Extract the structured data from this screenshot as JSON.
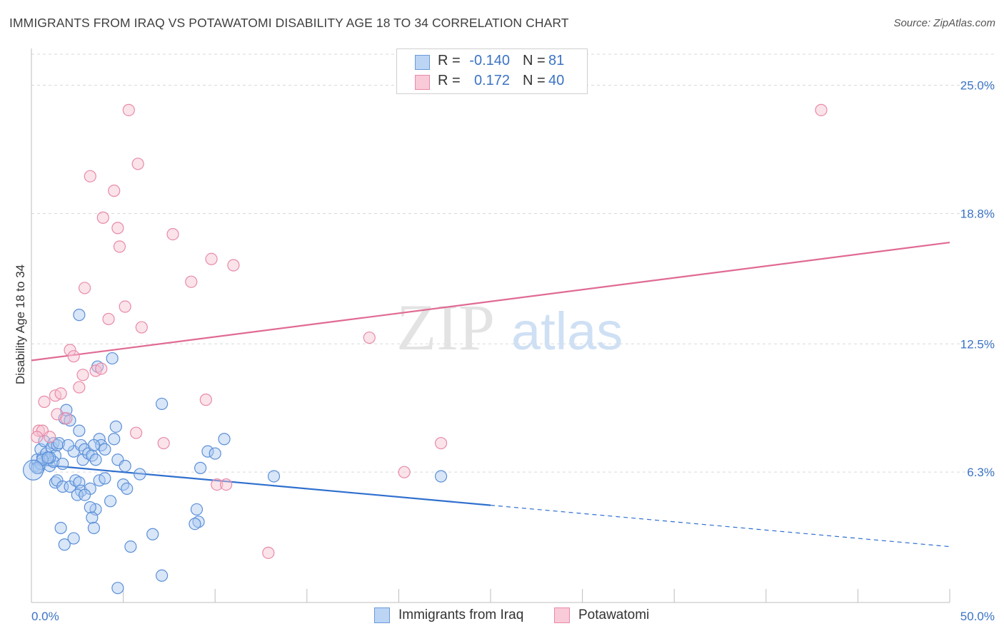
{
  "title": "IMMIGRANTS FROM IRAQ VS POTAWATOMI DISABILITY AGE 18 TO 34 CORRELATION CHART",
  "source": "Source: ZipAtlas.com",
  "watermark": {
    "zip": "ZIP",
    "atlas": "atlas"
  },
  "legend_top": [
    {
      "r_label": "R =",
      "r_value": "-0.140",
      "n_label": "N =",
      "n_value": "81"
    },
    {
      "r_label": "R =",
      "r_value": "0.172",
      "n_label": "N =",
      "n_value": "40"
    }
  ],
  "legend_bottom": [
    {
      "label": "Immigrants from Iraq"
    },
    {
      "label": "Potawatomi"
    }
  ],
  "colors": {
    "blue_fill": "#a8c8f0",
    "blue_stroke": "#5b8fd8",
    "blue_line": "#2f6fce",
    "pink_fill": "#f7c0d0",
    "pink_stroke": "#e88aa8",
    "pink_line": "#e06a94",
    "grid": "#d9d9d9",
    "axis_text": "#3b73c4"
  },
  "chart_data": {
    "type": "scatter",
    "title": "IMMIGRANTS FROM IRAQ VS POTAWATOMI DISABILITY AGE 18 TO 34 CORRELATION CHART",
    "xlabel": "",
    "ylabel": "Disability Age 18 to 34",
    "xlim": [
      0,
      50
    ],
    "ylim": [
      0,
      26.5
    ],
    "x_tick_labels": [
      "0.0%",
      "50.0%"
    ],
    "y_ticks": [
      6.3,
      12.5,
      18.8,
      25.0
    ],
    "y_tick_labels": [
      "6.3%",
      "12.5%",
      "18.8%",
      "25.0%"
    ],
    "grid": true,
    "legend_position": "top-center",
    "series": [
      {
        "name": "Immigrants from Iraq",
        "r": -0.14,
        "n": 81,
        "trend": {
          "x0": 0,
          "y0": 6.7,
          "x1": 25,
          "y1": 4.7,
          "dash_x1": 50,
          "dash_y1": 2.7
        },
        "points": [
          [
            0.2,
            6.6
          ],
          [
            0.3,
            6.9
          ],
          [
            0.4,
            6.5
          ],
          [
            0.5,
            6.7
          ],
          [
            0.6,
            7.0
          ],
          [
            0.5,
            7.4
          ],
          [
            0.7,
            7.8
          ],
          [
            0.8,
            7.2
          ],
          [
            0.9,
            6.9
          ],
          [
            1.0,
            6.6
          ],
          [
            1.1,
            7.5
          ],
          [
            1.2,
            7.7
          ],
          [
            1.3,
            7.1
          ],
          [
            1.4,
            7.6
          ],
          [
            1.5,
            7.7
          ],
          [
            1.2,
            6.8
          ],
          [
            1.8,
            8.9
          ],
          [
            1.9,
            9.3
          ],
          [
            1.7,
            6.7
          ],
          [
            2.1,
            8.8
          ],
          [
            2.3,
            7.3
          ],
          [
            2.6,
            8.3
          ],
          [
            2.7,
            7.6
          ],
          [
            2.8,
            6.9
          ],
          [
            1.3,
            5.8
          ],
          [
            1.4,
            5.9
          ],
          [
            1.7,
            5.6
          ],
          [
            2.1,
            5.6
          ],
          [
            2.4,
            5.9
          ],
          [
            2.6,
            5.8
          ],
          [
            2.7,
            5.4
          ],
          [
            2.9,
            7.4
          ],
          [
            3.1,
            7.2
          ],
          [
            3.3,
            7.1
          ],
          [
            3.5,
            6.9
          ],
          [
            3.7,
            7.9
          ],
          [
            3.8,
            7.6
          ],
          [
            3.2,
            5.5
          ],
          [
            3.7,
            5.9
          ],
          [
            4.0,
            6.0
          ],
          [
            3.5,
            4.5
          ],
          [
            3.2,
            4.6
          ],
          [
            4.3,
            4.9
          ],
          [
            3.3,
            4.1
          ],
          [
            3.4,
            3.6
          ],
          [
            1.6,
            3.6
          ],
          [
            1.8,
            2.8
          ],
          [
            2.3,
            3.1
          ],
          [
            2.5,
            5.2
          ],
          [
            2.9,
            5.2
          ],
          [
            4.5,
            7.9
          ],
          [
            4.6,
            8.5
          ],
          [
            4.7,
            6.9
          ],
          [
            5.0,
            5.7
          ],
          [
            5.2,
            5.5
          ],
          [
            5.1,
            6.6
          ],
          [
            5.9,
            6.2
          ],
          [
            3.6,
            11.4
          ],
          [
            4.4,
            11.8
          ],
          [
            2.6,
            13.9
          ],
          [
            7.1,
            9.6
          ],
          [
            7.1,
            1.3
          ],
          [
            6.6,
            3.3
          ],
          [
            5.4,
            2.7
          ],
          [
            4.7,
            0.7
          ],
          [
            9.2,
            6.5
          ],
          [
            9.6,
            7.3
          ],
          [
            10.0,
            7.2
          ],
          [
            10.5,
            7.9
          ],
          [
            9.0,
            4.5
          ],
          [
            9.1,
            3.9
          ],
          [
            8.9,
            3.8
          ],
          [
            13.2,
            6.1
          ],
          [
            22.3,
            6.1
          ],
          [
            1.0,
            7.0
          ],
          [
            0.6,
            6.9
          ],
          [
            2.0,
            7.6
          ],
          [
            0.3,
            6.5
          ],
          [
            0.9,
            7.0
          ],
          [
            4.0,
            7.4
          ],
          [
            3.4,
            7.6
          ]
        ],
        "point_sizes_note": "one large point near origin",
        "big_point": [
          0.1,
          6.4
        ]
      },
      {
        "name": "Potawatomi",
        "r": 0.172,
        "n": 40,
        "trend": {
          "x0": 0,
          "y0": 11.7,
          "x1": 50,
          "y1": 17.4
        },
        "points": [
          [
            5.3,
            23.8
          ],
          [
            5.8,
            21.2
          ],
          [
            3.2,
            20.6
          ],
          [
            4.5,
            19.9
          ],
          [
            3.9,
            18.6
          ],
          [
            4.7,
            18.1
          ],
          [
            7.7,
            17.8
          ],
          [
            4.8,
            17.2
          ],
          [
            9.8,
            16.6
          ],
          [
            11.0,
            16.3
          ],
          [
            8.7,
            15.5
          ],
          [
            2.9,
            15.2
          ],
          [
            5.1,
            14.3
          ],
          [
            4.2,
            13.7
          ],
          [
            6.0,
            13.3
          ],
          [
            2.1,
            12.2
          ],
          [
            2.3,
            11.9
          ],
          [
            3.5,
            11.2
          ],
          [
            3.8,
            11.3
          ],
          [
            2.8,
            11.0
          ],
          [
            2.6,
            10.4
          ],
          [
            1.3,
            10.0
          ],
          [
            1.6,
            10.1
          ],
          [
            0.7,
            9.7
          ],
          [
            1.4,
            9.1
          ],
          [
            1.9,
            8.9
          ],
          [
            0.4,
            8.3
          ],
          [
            0.6,
            8.3
          ],
          [
            1.0,
            8.0
          ],
          [
            5.7,
            8.2
          ],
          [
            9.5,
            9.8
          ],
          [
            7.2,
            7.7
          ],
          [
            10.1,
            5.7
          ],
          [
            10.6,
            5.7
          ],
          [
            12.9,
            2.4
          ],
          [
            18.4,
            12.8
          ],
          [
            20.3,
            6.3
          ],
          [
            22.3,
            7.7
          ],
          [
            43.0,
            23.8
          ],
          [
            0.3,
            8.0
          ]
        ]
      }
    ]
  }
}
